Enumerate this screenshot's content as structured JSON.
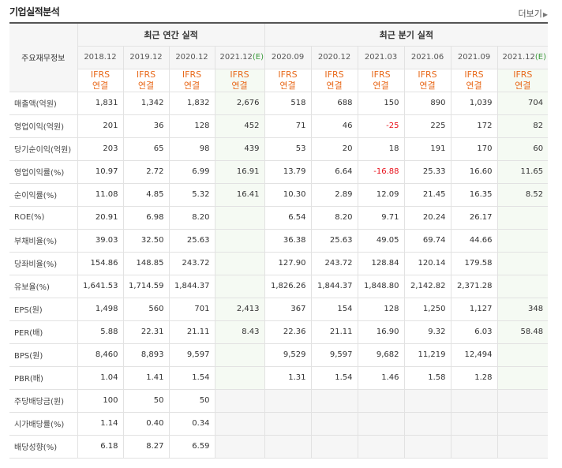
{
  "header": {
    "title": "기업실적분석",
    "more_label": "더보기"
  },
  "table": {
    "corner_label": "주요재무정보",
    "annual_head": "최근 연간 실적",
    "quarter_head": "최근 분기 실적",
    "annual_periods": [
      "2018.12",
      "2019.12",
      "2020.12",
      "2021.12"
    ],
    "annual_estimate_mark": "(E)",
    "quarter_periods": [
      "2020.09",
      "2020.12",
      "2021.03",
      "2021.06",
      "2021.09",
      "2021.12"
    ],
    "quarter_estimate_mark": "(E)",
    "ifrs_line1": "IFRS",
    "ifrs_line2": "연결",
    "rows": [
      {
        "label": "매출액(억원)",
        "values": [
          "1,831",
          "1,342",
          "1,832",
          "2,676",
          "518",
          "688",
          "150",
          "890",
          "1,039",
          "704"
        ]
      },
      {
        "label": "영업이익(억원)",
        "values": [
          "201",
          "36",
          "128",
          "452",
          "71",
          "46",
          "-25",
          "225",
          "172",
          "82"
        ]
      },
      {
        "label": "당기순이익(억원)",
        "values": [
          "203",
          "65",
          "98",
          "439",
          "53",
          "20",
          "18",
          "191",
          "170",
          "60"
        ]
      },
      {
        "label": "영업이익률(%)",
        "values": [
          "10.97",
          "2.72",
          "6.99",
          "16.91",
          "13.79",
          "6.64",
          "-16.88",
          "25.33",
          "16.60",
          "11.65"
        ]
      },
      {
        "label": "순이익률(%)",
        "values": [
          "11.08",
          "4.85",
          "5.32",
          "16.41",
          "10.30",
          "2.89",
          "12.09",
          "21.45",
          "16.35",
          "8.52"
        ]
      },
      {
        "label": "ROE(%)",
        "values": [
          "20.91",
          "6.98",
          "8.20",
          "",
          "6.54",
          "8.20",
          "9.71",
          "20.24",
          "26.17",
          ""
        ]
      },
      {
        "label": "부채비율(%)",
        "values": [
          "39.03",
          "32.50",
          "25.63",
          "",
          "36.38",
          "25.63",
          "49.05",
          "69.74",
          "44.66",
          ""
        ]
      },
      {
        "label": "당좌비율(%)",
        "values": [
          "154.86",
          "148.85",
          "243.72",
          "",
          "127.90",
          "243.72",
          "128.84",
          "120.14",
          "179.58",
          ""
        ]
      },
      {
        "label": "유보율(%)",
        "values": [
          "1,641.53",
          "1,714.59",
          "1,844.37",
          "",
          "1,826.26",
          "1,844.37",
          "1,848.80",
          "2,142.82",
          "2,371.28",
          ""
        ]
      },
      {
        "label": "EPS(원)",
        "values": [
          "1,498",
          "560",
          "701",
          "2,413",
          "367",
          "154",
          "128",
          "1,250",
          "1,127",
          "348"
        ]
      },
      {
        "label": "PER(배)",
        "values": [
          "5.88",
          "22.31",
          "21.11",
          "8.43",
          "22.36",
          "21.11",
          "16.90",
          "9.32",
          "6.03",
          "58.48"
        ]
      },
      {
        "label": "BPS(원)",
        "values": [
          "8,460",
          "8,893",
          "9,597",
          "",
          "9,529",
          "9,597",
          "9,682",
          "11,219",
          "12,494",
          ""
        ]
      },
      {
        "label": "PBR(배)",
        "values": [
          "1.04",
          "1.41",
          "1.54",
          "",
          "1.31",
          "1.54",
          "1.46",
          "1.58",
          "1.28",
          ""
        ]
      },
      {
        "label": "주당배당금(원)",
        "values": [
          "100",
          "50",
          "50",
          "",
          "",
          "",
          "",
          "",
          "",
          ""
        ]
      },
      {
        "label": "시가배당률(%)",
        "values": [
          "1.14",
          "0.40",
          "0.34",
          "",
          "",
          "",
          "",
          "",
          "",
          ""
        ]
      },
      {
        "label": "배당성향(%)",
        "values": [
          "6.18",
          "8.27",
          "6.59",
          "",
          "",
          "",
          "",
          "",
          "",
          ""
        ]
      }
    ]
  }
}
